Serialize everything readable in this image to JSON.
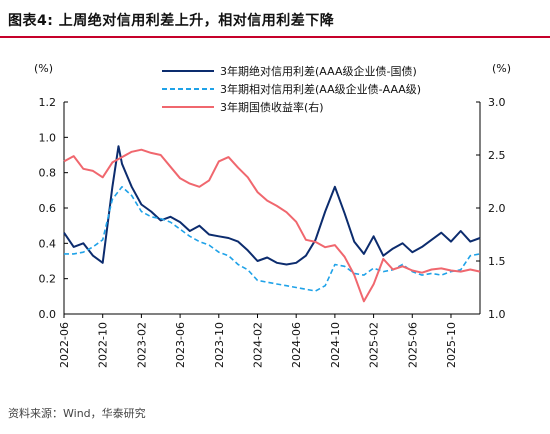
{
  "header": {
    "title": "图表4:  上周绝对信用利差上升，相对信用利差下降"
  },
  "footer": {
    "source": "资料来源：Wind，华泰研究"
  },
  "chart_data": {
    "type": "line",
    "title": "图表4:  上周绝对信用利差上升，相对信用利差下降",
    "left_axis": {
      "unit": "(%)",
      "range": [
        0.0,
        1.2
      ],
      "ticks": [
        "0.0",
        "0.2",
        "0.4",
        "0.6",
        "0.8",
        "1.0",
        "1.2"
      ]
    },
    "right_axis": {
      "unit": "(%)",
      "range": [
        1.0,
        3.0
      ],
      "ticks": [
        "1.0",
        "1.5",
        "2.0",
        "2.5",
        "3.0"
      ]
    },
    "x_axis": {
      "range": [
        "2022-06",
        "2026-01"
      ],
      "ticks": [
        "2022-06",
        "2022-10",
        "2023-02",
        "2023-06",
        "2023-10",
        "2024-02",
        "2024-06",
        "2024-10",
        "2025-02",
        "2025-06",
        "2025-10"
      ]
    },
    "legend_position": "top",
    "grid": false,
    "colors": {
      "absolute": "#0c2c6e",
      "relative": "#1fa2e8",
      "yield": "#f0676e"
    },
    "series": [
      {
        "name": "3年期绝对信用利差(AAA级企业债-国债)",
        "axis": "left",
        "style": "solid",
        "points": [
          [
            "2022-06",
            0.46
          ],
          [
            "2022-07",
            0.38
          ],
          [
            "2022-08",
            0.4
          ],
          [
            "2022-09",
            0.33
          ],
          [
            "2022-10",
            0.29
          ],
          [
            "2022-11",
            0.72
          ],
          [
            "2022-11-20",
            0.95
          ],
          [
            "2022-12",
            0.85
          ],
          [
            "2023-01",
            0.72
          ],
          [
            "2023-02",
            0.62
          ],
          [
            "2023-03",
            0.58
          ],
          [
            "2023-04",
            0.53
          ],
          [
            "2023-05",
            0.55
          ],
          [
            "2023-06",
            0.52
          ],
          [
            "2023-07",
            0.47
          ],
          [
            "2023-08",
            0.5
          ],
          [
            "2023-09",
            0.45
          ],
          [
            "2023-10",
            0.44
          ],
          [
            "2023-11",
            0.43
          ],
          [
            "2023-12",
            0.41
          ],
          [
            "2024-01",
            0.36
          ],
          [
            "2024-02",
            0.3
          ],
          [
            "2024-03",
            0.32
          ],
          [
            "2024-04",
            0.29
          ],
          [
            "2024-05",
            0.28
          ],
          [
            "2024-06",
            0.29
          ],
          [
            "2024-07",
            0.33
          ],
          [
            "2024-08",
            0.42
          ],
          [
            "2024-09",
            0.58
          ],
          [
            "2024-10",
            0.72
          ],
          [
            "2024-11",
            0.57
          ],
          [
            "2024-12",
            0.41
          ],
          [
            "2025-01",
            0.34
          ],
          [
            "2025-02",
            0.44
          ],
          [
            "2025-03",
            0.33
          ],
          [
            "2025-04",
            0.37
          ],
          [
            "2025-05",
            0.4
          ],
          [
            "2025-06",
            0.35
          ],
          [
            "2025-07",
            0.38
          ],
          [
            "2025-08",
            0.42
          ],
          [
            "2025-09",
            0.46
          ],
          [
            "2025-10",
            0.41
          ],
          [
            "2025-11",
            0.47
          ],
          [
            "2025-12",
            0.41
          ],
          [
            "2026-01",
            0.43
          ]
        ]
      },
      {
        "name": "3年期相对信用利差(AA级企业债-AAA级)",
        "axis": "left",
        "style": "dashed",
        "points": [
          [
            "2022-06",
            0.34
          ],
          [
            "2022-07",
            0.34
          ],
          [
            "2022-08",
            0.35
          ],
          [
            "2022-09",
            0.38
          ],
          [
            "2022-10",
            0.42
          ],
          [
            "2022-11",
            0.65
          ],
          [
            "2022-12",
            0.72
          ],
          [
            "2023-01",
            0.67
          ],
          [
            "2023-02",
            0.58
          ],
          [
            "2023-03",
            0.55
          ],
          [
            "2023-04",
            0.54
          ],
          [
            "2023-05",
            0.52
          ],
          [
            "2023-06",
            0.48
          ],
          [
            "2023-07",
            0.44
          ],
          [
            "2023-08",
            0.41
          ],
          [
            "2023-09",
            0.39
          ],
          [
            "2023-10",
            0.35
          ],
          [
            "2023-11",
            0.33
          ],
          [
            "2023-12",
            0.28
          ],
          [
            "2024-01",
            0.25
          ],
          [
            "2024-02",
            0.19
          ],
          [
            "2024-03",
            0.18
          ],
          [
            "2024-04",
            0.17
          ],
          [
            "2024-05",
            0.16
          ],
          [
            "2024-06",
            0.15
          ],
          [
            "2024-07",
            0.14
          ],
          [
            "2024-08",
            0.13
          ],
          [
            "2024-09",
            0.16
          ],
          [
            "2024-10",
            0.28
          ],
          [
            "2024-11",
            0.27
          ],
          [
            "2024-12",
            0.23
          ],
          [
            "2025-01",
            0.22
          ],
          [
            "2025-02",
            0.26
          ],
          [
            "2025-03",
            0.24
          ],
          [
            "2025-04",
            0.25
          ],
          [
            "2025-05",
            0.28
          ],
          [
            "2025-06",
            0.24
          ],
          [
            "2025-07",
            0.22
          ],
          [
            "2025-08",
            0.23
          ],
          [
            "2025-09",
            0.22
          ],
          [
            "2025-10",
            0.24
          ],
          [
            "2025-11",
            0.25
          ],
          [
            "2025-12",
            0.33
          ],
          [
            "2026-01",
            0.34
          ]
        ]
      },
      {
        "name": "3年期国债收益率(右)",
        "axis": "right",
        "style": "solid",
        "points": [
          [
            "2022-06",
            2.44
          ],
          [
            "2022-07",
            2.49
          ],
          [
            "2022-08",
            2.37
          ],
          [
            "2022-09",
            2.35
          ],
          [
            "2022-10",
            2.29
          ],
          [
            "2022-11",
            2.43
          ],
          [
            "2022-12",
            2.48
          ],
          [
            "2023-01",
            2.53
          ],
          [
            "2023-02",
            2.55
          ],
          [
            "2023-03",
            2.52
          ],
          [
            "2023-04",
            2.5
          ],
          [
            "2023-05",
            2.39
          ],
          [
            "2023-06",
            2.28
          ],
          [
            "2023-07",
            2.23
          ],
          [
            "2023-08",
            2.2
          ],
          [
            "2023-09",
            2.26
          ],
          [
            "2023-10",
            2.44
          ],
          [
            "2023-11",
            2.48
          ],
          [
            "2023-12",
            2.38
          ],
          [
            "2024-01",
            2.29
          ],
          [
            "2024-02",
            2.15
          ],
          [
            "2024-03",
            2.07
          ],
          [
            "2024-04",
            2.02
          ],
          [
            "2024-05",
            1.96
          ],
          [
            "2024-06",
            1.87
          ],
          [
            "2024-07",
            1.7
          ],
          [
            "2024-08",
            1.68
          ],
          [
            "2024-09",
            1.63
          ],
          [
            "2024-10",
            1.65
          ],
          [
            "2024-11",
            1.54
          ],
          [
            "2024-12",
            1.37
          ],
          [
            "2025-01",
            1.12
          ],
          [
            "2025-02",
            1.28
          ],
          [
            "2025-03",
            1.52
          ],
          [
            "2025-04",
            1.42
          ],
          [
            "2025-05",
            1.45
          ],
          [
            "2025-06",
            1.41
          ],
          [
            "2025-07",
            1.39
          ],
          [
            "2025-08",
            1.42
          ],
          [
            "2025-09",
            1.43
          ],
          [
            "2025-10",
            1.41
          ],
          [
            "2025-11",
            1.4
          ],
          [
            "2025-12",
            1.42
          ],
          [
            "2026-01",
            1.4
          ]
        ]
      }
    ]
  }
}
